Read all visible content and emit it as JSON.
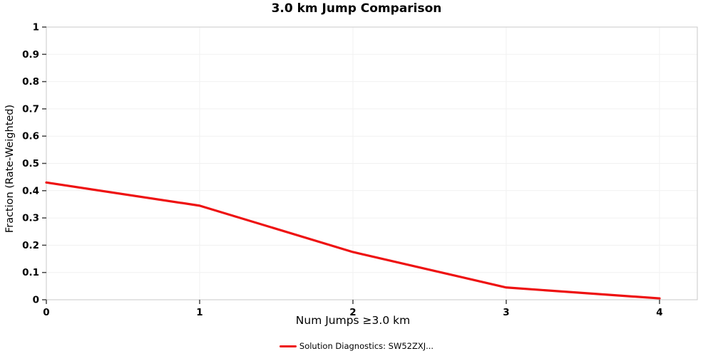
{
  "chart_data": {
    "type": "line",
    "title": "3.0 km Jump Comparison",
    "xlabel": "Num Jumps ≥3.0 km",
    "ylabel": "Fraction (Rate-Weighted)",
    "x": [
      0,
      1,
      2,
      3,
      4
    ],
    "series": [
      {
        "name": "Solution Diagnostics: SW52ZXJ...",
        "color": "#ee1111",
        "values": [
          0.43,
          0.345,
          0.175,
          0.045,
          0.005
        ]
      }
    ],
    "xlim": [
      0,
      4.25
    ],
    "ylim": [
      0,
      1
    ],
    "x_ticks": [
      0,
      1,
      2,
      3,
      4
    ],
    "y_ticks": [
      0,
      0.1,
      0.2,
      0.3,
      0.4,
      0.5,
      0.6,
      0.7,
      0.8,
      0.9,
      1
    ],
    "grid": true,
    "legend_position": "bottom",
    "frame_color": "#c9c9c9",
    "grid_color": "#f1f1f1",
    "tick_color": "#444444",
    "text_color": "#000000"
  }
}
